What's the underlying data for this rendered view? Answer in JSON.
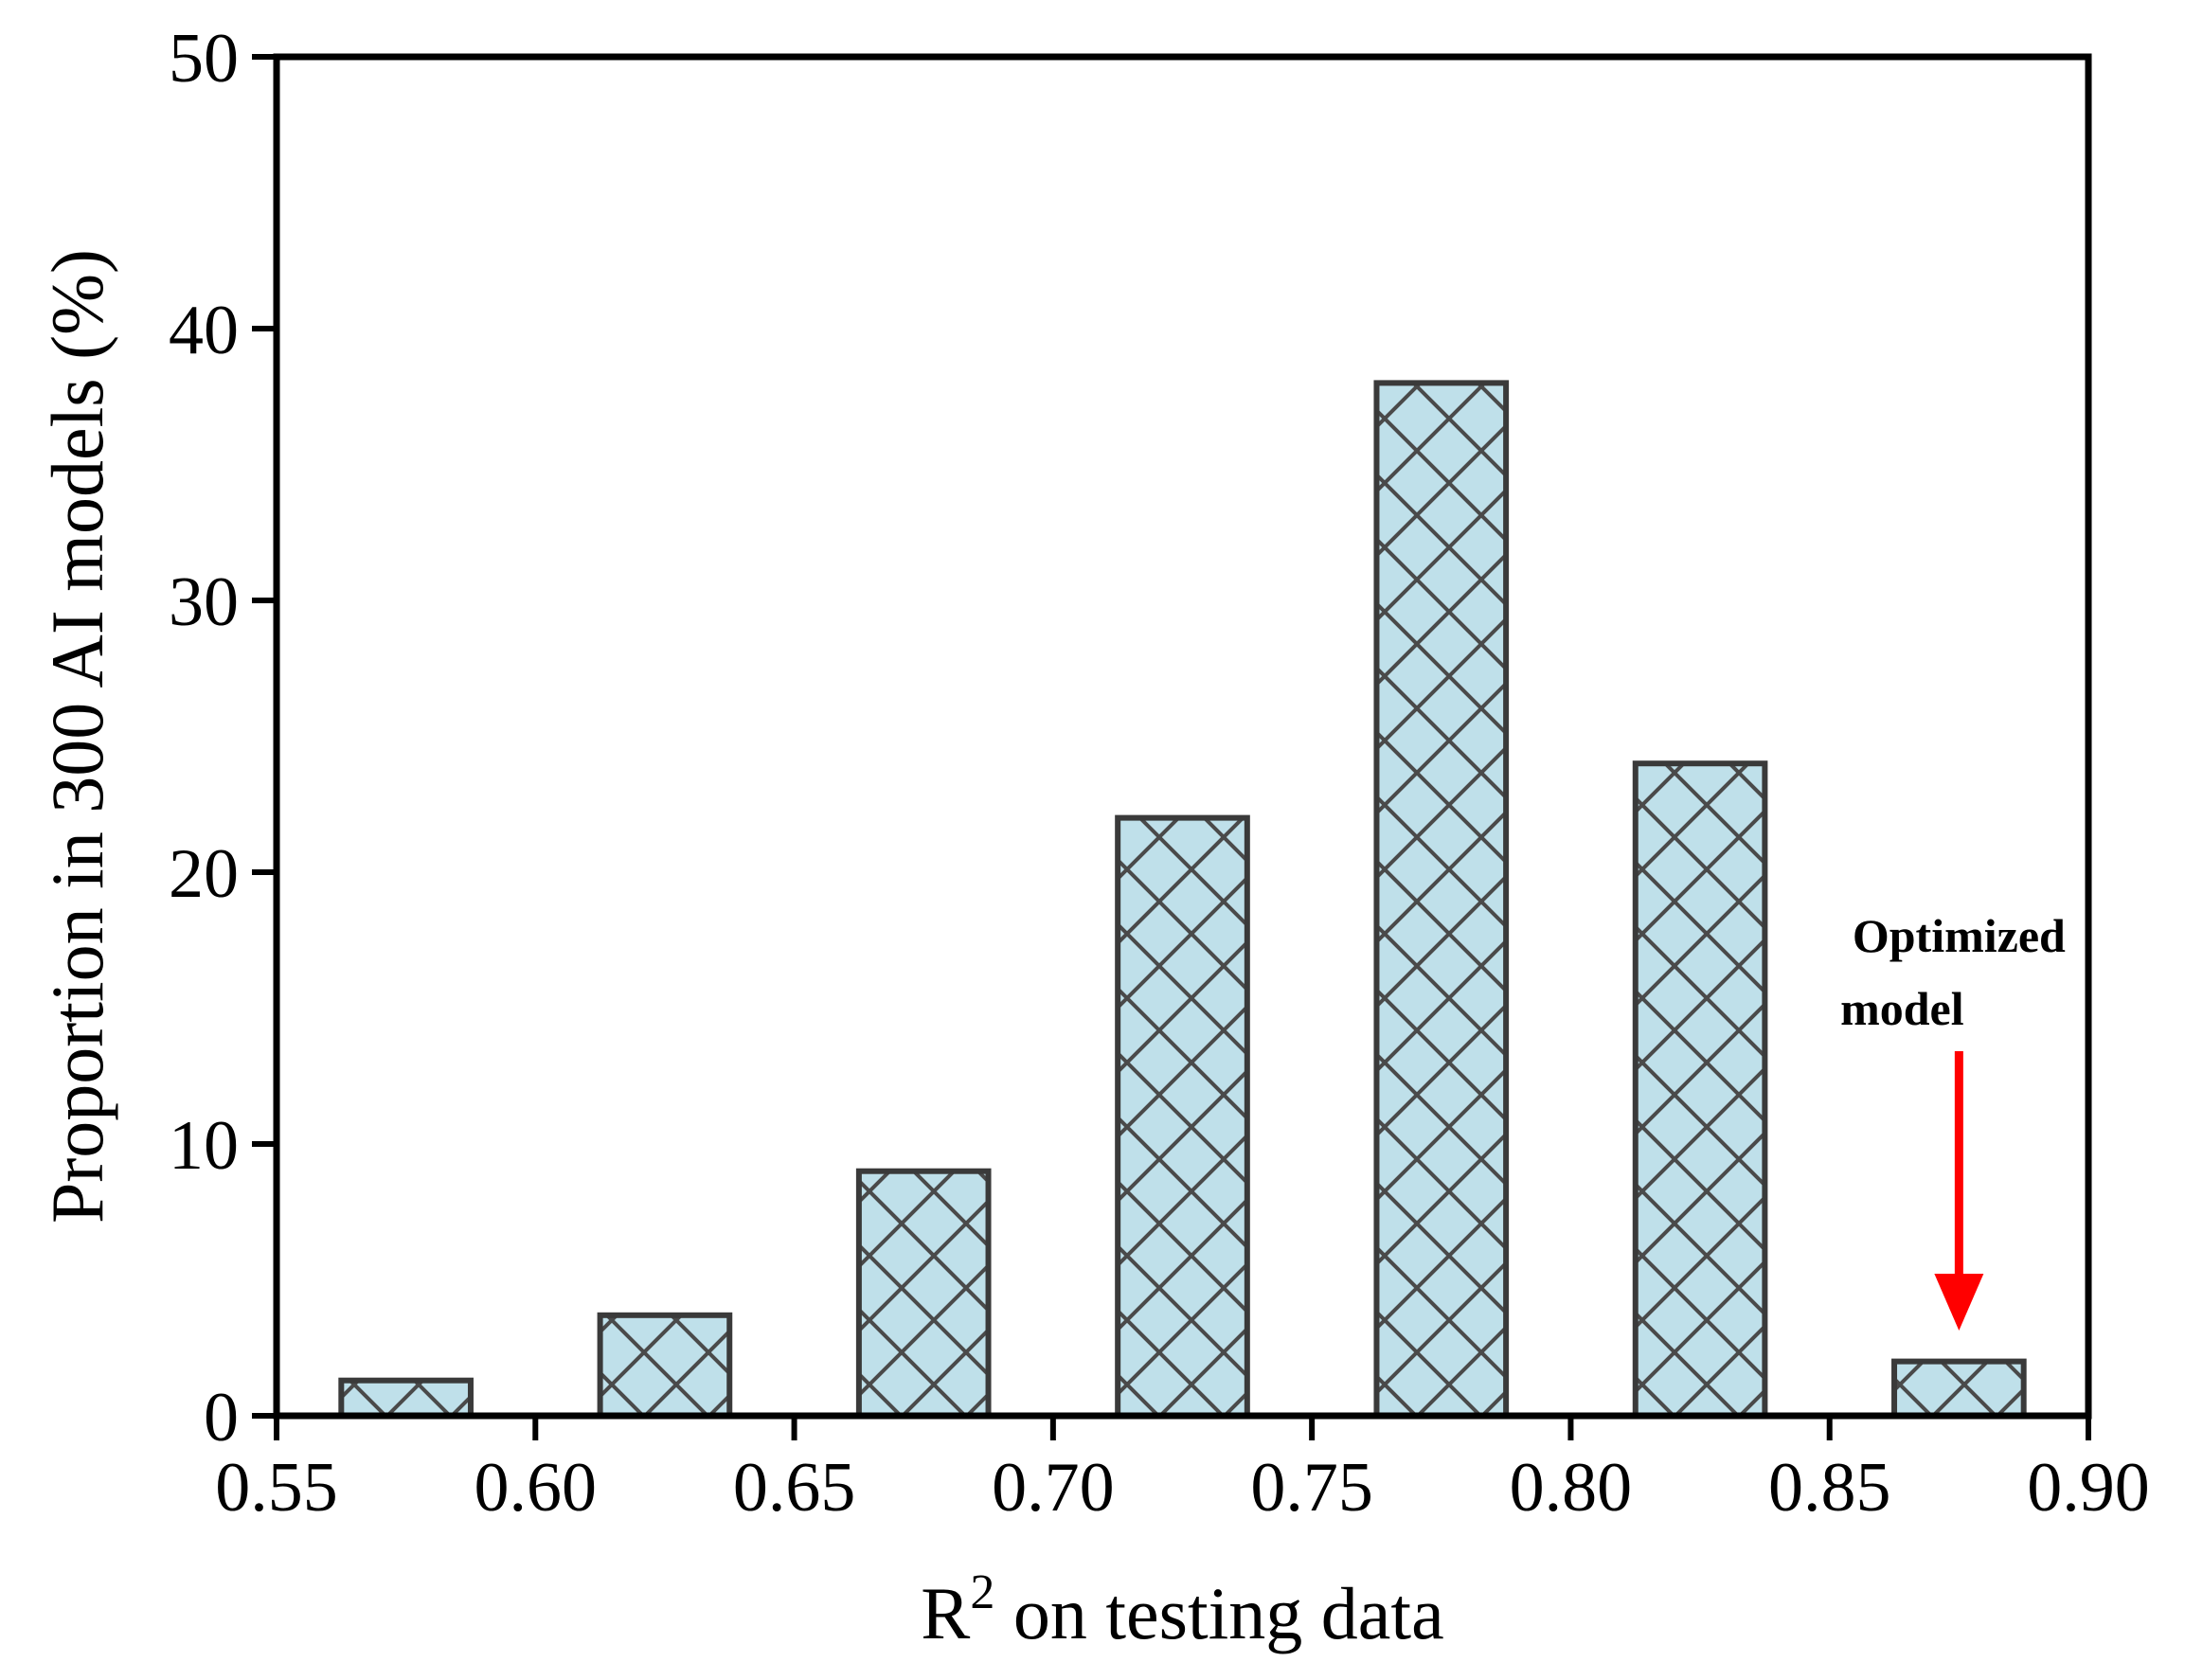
{
  "chart_data": {
    "type": "bar",
    "title": "",
    "xlabel": "R",
    "xlabel_superscript": "2",
    "xlabel_rest": " on testing data",
    "ylabel": "Proportion in 300 AI models (%)",
    "xlim": [
      0.55,
      0.9
    ],
    "ylim": [
      0,
      50
    ],
    "xticks": [
      "0.55",
      "0.60",
      "0.65",
      "0.70",
      "0.75",
      "0.80",
      "0.85",
      "0.90"
    ],
    "yticks": [
      "0",
      "10",
      "20",
      "30",
      "40",
      "50"
    ],
    "bar_width": 0.025,
    "x": [
      0.575,
      0.625,
      0.675,
      0.725,
      0.775,
      0.825,
      0.875
    ],
    "values": [
      1.3,
      3.7,
      9.0,
      22.0,
      38.0,
      24.0,
      2.0
    ],
    "grid": false,
    "bar_fill": "#bfe0ea",
    "bar_edge": "#3a3a3a",
    "bar_hatch": "crosshatch",
    "annotation": {
      "line1": "Optimized",
      "line2": "model",
      "x": 0.875,
      "color": "#ff0000"
    }
  }
}
